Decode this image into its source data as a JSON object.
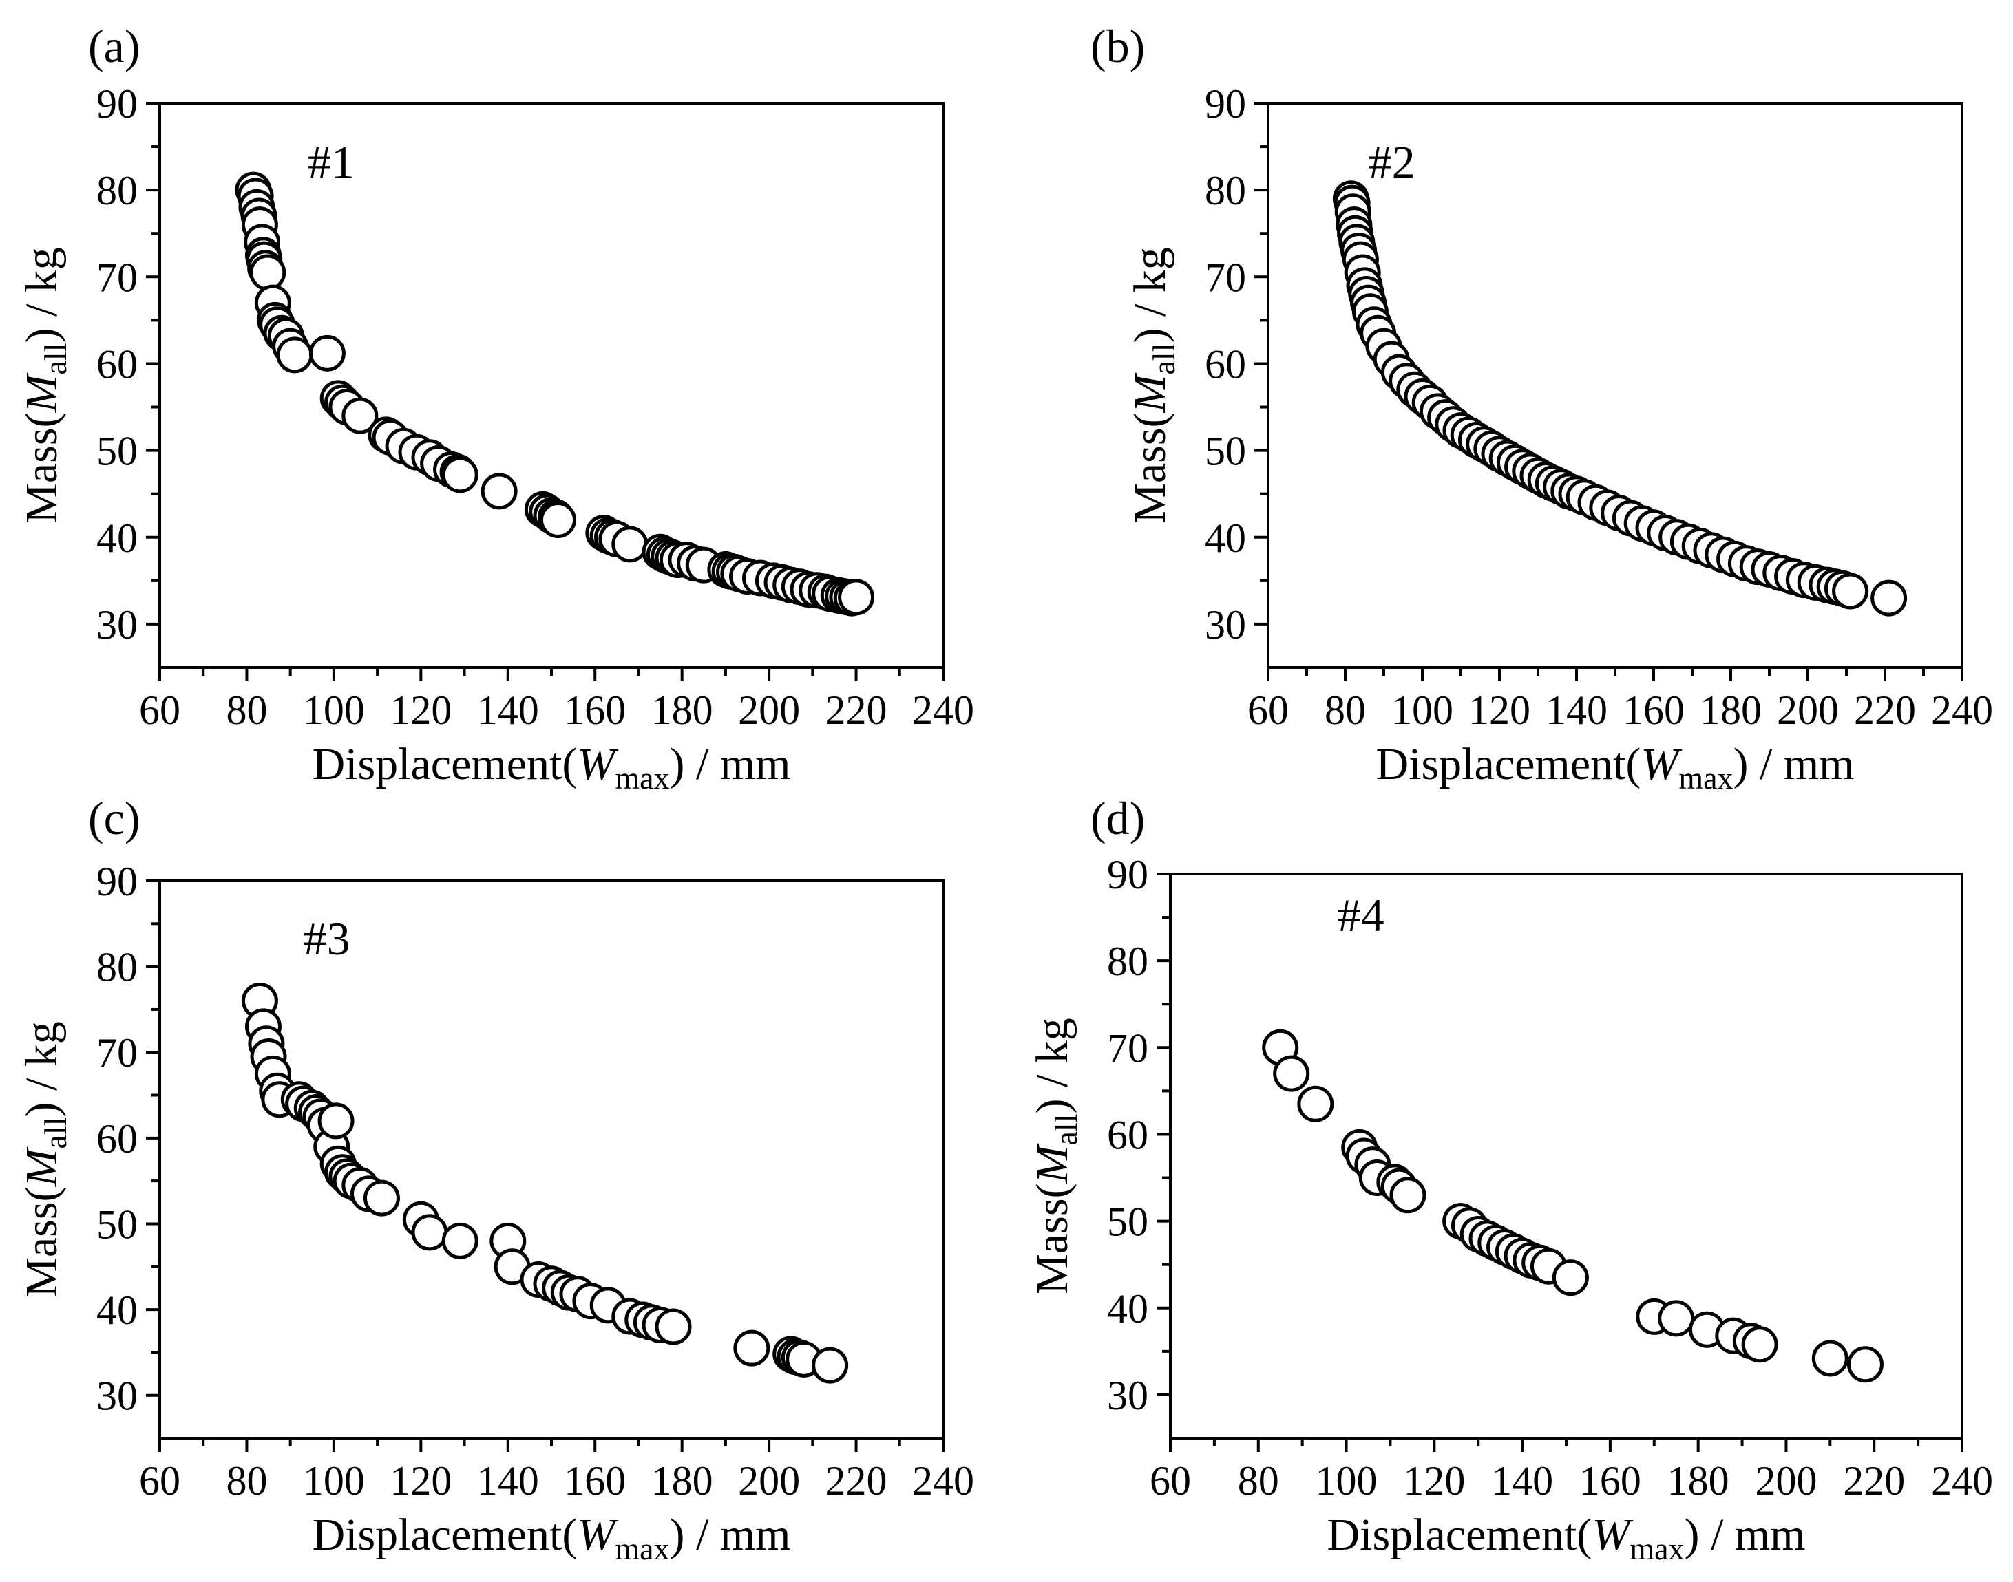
{
  "chart_data": [
    {
      "type": "scatter",
      "panel_label": "(a)",
      "annotation": "#1",
      "xlabel": {
        "main": "Displacement(",
        "italic": "W",
        "sub": "max",
        "tail": ") / mm"
      },
      "ylabel": {
        "main": "Mass(",
        "italic": "M",
        "sub": "all",
        "tail": ") / kg"
      },
      "xlim": [
        60,
        240
      ],
      "ylim": [
        25,
        90
      ],
      "xticks": [
        "60",
        "80",
        "100",
        "120",
        "140",
        "160",
        "180",
        "200",
        "220",
        "240"
      ],
      "yticks": [
        "30",
        "40",
        "50",
        "60",
        "70",
        "80",
        "90"
      ],
      "series": [
        {
          "name": "#1",
          "points": [
            [
              81.5,
              80
            ],
            [
              82,
              79.3
            ],
            [
              82.3,
              78
            ],
            [
              82.8,
              77
            ],
            [
              83,
              76
            ],
            [
              83.5,
              74
            ],
            [
              83.8,
              72.5
            ],
            [
              84,
              72
            ],
            [
              84.3,
              71
            ],
            [
              84.8,
              70.5
            ],
            [
              86,
              67
            ],
            [
              86.5,
              65
            ],
            [
              87,
              64.5
            ],
            [
              88,
              63.5
            ],
            [
              89,
              63.2
            ],
            [
              90,
              62
            ],
            [
              91,
              61
            ],
            [
              98.5,
              61.2
            ],
            [
              101,
              56
            ],
            [
              102,
              55.5
            ],
            [
              103,
              55
            ],
            [
              106,
              54
            ],
            [
              112,
              51.8
            ],
            [
              113,
              51.5
            ],
            [
              116,
              50.5
            ],
            [
              119,
              49.8
            ],
            [
              122,
              49.2
            ],
            [
              124,
              48.5
            ],
            [
              127,
              47.8
            ],
            [
              128.5,
              47.5
            ],
            [
              129,
              47.2
            ],
            [
              138,
              45.3
            ],
            [
              148,
              43.2
            ],
            [
              149,
              42.9
            ],
            [
              150,
              42.5
            ],
            [
              151,
              42.3
            ],
            [
              151.5,
              42
            ],
            [
              162,
              40.5
            ],
            [
              163,
              40.2
            ],
            [
              164,
              40
            ],
            [
              165,
              39.8
            ],
            [
              168,
              39.2
            ],
            [
              175,
              38.3
            ],
            [
              176,
              38
            ],
            [
              177,
              37.8
            ],
            [
              178,
              37.6
            ],
            [
              179,
              37.4
            ],
            [
              181,
              37.4
            ],
            [
              183,
              37
            ],
            [
              185,
              36.8
            ],
            [
              190,
              36.3
            ],
            [
              191,
              36.1
            ],
            [
              192,
              36
            ],
            [
              193,
              35.8
            ],
            [
              195,
              35.5
            ],
            [
              198,
              35.3
            ],
            [
              201,
              35
            ],
            [
              203,
              34.8
            ],
            [
              205,
              34.5
            ],
            [
              207,
              34.3
            ],
            [
              209,
              34
            ],
            [
              211,
              33.9
            ],
            [
              213,
              33.7
            ],
            [
              214,
              33.5
            ],
            [
              216,
              33.3
            ],
            [
              217,
              33.2
            ],
            [
              218,
              33.1
            ],
            [
              219,
              33
            ],
            [
              220,
              33.1
            ]
          ]
        }
      ]
    },
    {
      "type": "scatter",
      "panel_label": "(b)",
      "annotation": "#2",
      "xlabel": {
        "main": "Displacement(",
        "italic": "W",
        "sub": "max",
        "tail": ") / mm"
      },
      "ylabel": {
        "main": "Mass(",
        "italic": "M",
        "sub": "all",
        "tail": ") / kg"
      },
      "xlim": [
        60,
        240
      ],
      "ylim": [
        25,
        90
      ],
      "xticks": [
        "60",
        "80",
        "100",
        "120",
        "140",
        "160",
        "180",
        "200",
        "220",
        "240"
      ],
      "yticks": [
        "30",
        "40",
        "50",
        "60",
        "70",
        "80",
        "90"
      ],
      "series": [
        {
          "name": "#2",
          "points": [
            [
              81.5,
              79
            ],
            [
              81.8,
              78.5
            ],
            [
              82,
              77.5
            ],
            [
              82.3,
              76
            ],
            [
              82.6,
              75
            ],
            [
              83,
              74
            ],
            [
              83.5,
              73
            ],
            [
              84,
              72
            ],
            [
              84.5,
              70.5
            ],
            [
              85,
              69
            ],
            [
              85.5,
              68
            ],
            [
              86,
              67
            ],
            [
              86.5,
              66
            ],
            [
              87.5,
              64.5
            ],
            [
              88.5,
              63.5
            ],
            [
              90,
              62
            ],
            [
              92,
              60.5
            ],
            [
              94,
              59
            ],
            [
              96,
              58
            ],
            [
              98,
              57
            ],
            [
              100,
              56.2
            ],
            [
              102,
              55.5
            ],
            [
              104,
              54.5
            ],
            [
              106,
              53.8
            ],
            [
              108,
              53
            ],
            [
              110,
              52.3
            ],
            [
              112,
              51.8
            ],
            [
              114,
              51.2
            ],
            [
              116,
              50.7
            ],
            [
              118,
              50.2
            ],
            [
              120,
              49.6
            ],
            [
              122,
              49.1
            ],
            [
              124,
              48.6
            ],
            [
              126,
              48.1
            ],
            [
              128,
              47.6
            ],
            [
              130,
              47.1
            ],
            [
              132,
              46.6
            ],
            [
              134,
              46.2
            ],
            [
              136,
              45.8
            ],
            [
              138,
              45.3
            ],
            [
              140,
              45
            ],
            [
              142,
              44.6
            ],
            [
              145,
              44
            ],
            [
              148,
              43.4
            ],
            [
              151,
              42.8
            ],
            [
              154,
              42.2
            ],
            [
              157,
              41.6
            ],
            [
              160,
              41.1
            ],
            [
              163,
              40.5
            ],
            [
              166,
              40
            ],
            [
              169,
              39.5
            ],
            [
              172,
              39
            ],
            [
              175,
              38.5
            ],
            [
              178,
              38
            ],
            [
              181,
              37.5
            ],
            [
              184,
              37
            ],
            [
              187,
              36.6
            ],
            [
              190,
              36.3
            ],
            [
              193,
              35.9
            ],
            [
              196,
              35.5
            ],
            [
              199,
              35.1
            ],
            [
              202,
              34.8
            ],
            [
              205,
              34.5
            ],
            [
              207,
              34.3
            ],
            [
              209,
              34.1
            ],
            [
              211,
              33.8
            ],
            [
              221,
              33
            ]
          ]
        }
      ]
    },
    {
      "type": "scatter",
      "panel_label": "(c)",
      "annotation": "#3",
      "xlabel": {
        "main": "Displacement(",
        "italic": "W",
        "sub": "max",
        "tail": ") / mm"
      },
      "ylabel": {
        "main": "Mass(",
        "italic": "M",
        "sub": "all",
        "tail": ") / kg"
      },
      "xlim": [
        60,
        240
      ],
      "ylim": [
        25,
        90
      ],
      "xticks": [
        "60",
        "80",
        "100",
        "120",
        "140",
        "160",
        "180",
        "200",
        "220",
        "240"
      ],
      "yticks": [
        "30",
        "40",
        "50",
        "60",
        "70",
        "80",
        "90"
      ],
      "series": [
        {
          "name": "#3",
          "points": [
            [
              83,
              76
            ],
            [
              83.8,
              73
            ],
            [
              84.5,
              71
            ],
            [
              85,
              69.5
            ],
            [
              86,
              67.5
            ],
            [
              87,
              65.5
            ],
            [
              87.5,
              64.5
            ],
            [
              92,
              64.5
            ],
            [
              93,
              64
            ],
            [
              95,
              63.5
            ],
            [
              96,
              63
            ],
            [
              97,
              62.5
            ],
            [
              98,
              61.5
            ],
            [
              99.5,
              59
            ],
            [
              100.5,
              62
            ],
            [
              101,
              57
            ],
            [
              102,
              56
            ],
            [
              103,
              55.5
            ],
            [
              104,
              55
            ],
            [
              106,
              54.5
            ],
            [
              108,
              53.5
            ],
            [
              111,
              53
            ],
            [
              120,
              50.5
            ],
            [
              122,
              49
            ],
            [
              129,
              48
            ],
            [
              140,
              48
            ],
            [
              141,
              45
            ],
            [
              147,
              43.5
            ],
            [
              150,
              43
            ],
            [
              152,
              42.5
            ],
            [
              154,
              42
            ],
            [
              156,
              41.8
            ],
            [
              159,
              41
            ],
            [
              163,
              40.5
            ],
            [
              168,
              39.2
            ],
            [
              171,
              38.8
            ],
            [
              173,
              38.5
            ],
            [
              175,
              38.2
            ],
            [
              178,
              38
            ],
            [
              196,
              35.5
            ],
            [
              205,
              34.8
            ],
            [
              206,
              34.5
            ],
            [
              207,
              34.4
            ],
            [
              208,
              34.2
            ],
            [
              214,
              33.5
            ]
          ]
        }
      ]
    },
    {
      "type": "scatter",
      "panel_label": "(d)",
      "annotation": "#4",
      "xlabel": {
        "main": "Displacement(",
        "italic": "W",
        "sub": "max",
        "tail": ") / mm"
      },
      "ylabel": {
        "main": "Mass(",
        "italic": "M",
        "sub": "all",
        "tail": ") / kg"
      },
      "xlim": [
        60,
        240
      ],
      "ylim": [
        25,
        90
      ],
      "xticks": [
        "60",
        "80",
        "100",
        "120",
        "140",
        "160",
        "180",
        "200",
        "220",
        "240"
      ],
      "yticks": [
        "30",
        "40",
        "50",
        "60",
        "70",
        "80",
        "90"
      ],
      "series": [
        {
          "name": "#4",
          "points": [
            [
              85,
              70
            ],
            [
              87.5,
              67
            ],
            [
              93,
              63.5
            ],
            [
              103,
              58.5
            ],
            [
              104,
              57.5
            ],
            [
              106,
              56.5
            ],
            [
              107,
              55
            ],
            [
              111,
              54.5
            ],
            [
              112,
              54
            ],
            [
              114,
              53
            ],
            [
              126,
              50
            ],
            [
              128,
              49.5
            ],
            [
              130,
              48.5
            ],
            [
              132,
              48
            ],
            [
              134,
              47.5
            ],
            [
              136,
              47
            ],
            [
              138,
              46.5
            ],
            [
              140,
              46
            ],
            [
              142,
              45.5
            ],
            [
              144,
              45.2
            ],
            [
              146,
              44.8
            ],
            [
              151,
              43.5
            ],
            [
              170,
              39
            ],
            [
              175,
              38.8
            ],
            [
              182,
              37.5
            ],
            [
              188,
              36.8
            ],
            [
              192,
              36.2
            ],
            [
              194,
              35.8
            ],
            [
              210,
              34.2
            ],
            [
              218,
              33.5
            ]
          ]
        }
      ]
    }
  ]
}
